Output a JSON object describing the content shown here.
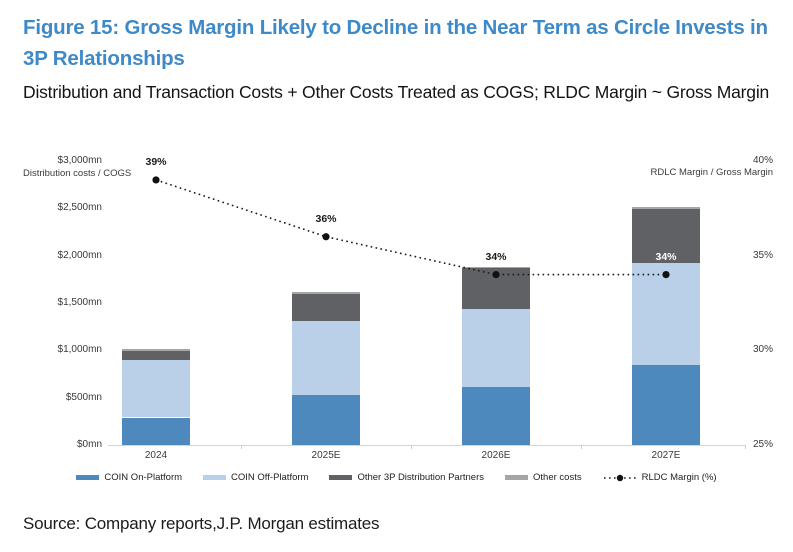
{
  "header": {
    "title": "Figure 15: Gross Margin Likely to Decline in the Near Term as Circle Invests in 3P Relationships",
    "subtitle": "Distribution and Transaction Costs + Other Costs Treated as COGS; RLDC Margin ~ Gross Margin"
  },
  "footer": {
    "source": "Source: Company reports,J.P. Morgan estimates"
  },
  "colors": {
    "title_blue": "#3e8ac8",
    "coin_on_platform": "#4e89be",
    "coin_off_platform": "#b9d0e8",
    "other_3p": "#5f6164",
    "other_costs": "#a6a6a6",
    "rldc_line": "#1a1a1a",
    "axis_line": "#d4d4d4"
  },
  "chart_data": {
    "type": "bar",
    "subtype": "stacked-bar-with-line",
    "categories": [
      "2024",
      "2025E",
      "2026E",
      "2027E"
    ],
    "series": [
      {
        "name": "COIN On-Platform",
        "color": "#4e89be",
        "values": [
          290,
          530,
          615,
          845
        ]
      },
      {
        "name": "COIN Off-Platform",
        "color": "#b9d0e8",
        "values": [
          610,
          785,
          820,
          1080
        ]
      },
      {
        "name": "Other 3P Distribution Partners",
        "color": "#5f6164",
        "values": [
          95,
          280,
          430,
          570
        ]
      },
      {
        "name": "Other costs",
        "color": "#a6a6a6",
        "values": [
          20,
          20,
          20,
          20
        ]
      }
    ],
    "line_series": {
      "name": "RLDC Margin (%)",
      "values": [
        39,
        36,
        34,
        34
      ],
      "labels": [
        "39%",
        "36%",
        "34%",
        "34%"
      ],
      "color": "#1a1a1a",
      "style": "dotted-with-markers",
      "axis": "right"
    },
    "left_axis": {
      "title": "Distribution costs / COGS",
      "ticks": [
        "$3,000mn",
        "$2,500mn",
        "$2,000mn",
        "$1,500mn",
        "$1,000mn",
        "$500mn",
        "$0mn"
      ],
      "tick_values": [
        3000,
        2500,
        2000,
        1500,
        1000,
        500,
        0
      ],
      "range": [
        0,
        3000
      ]
    },
    "right_axis": {
      "title": "RDLC Margin / Gross Margin",
      "ticks": [
        "40%",
        "35%",
        "30%",
        "25%"
      ],
      "tick_values": [
        40,
        35,
        30,
        25
      ],
      "range": [
        25,
        40
      ]
    },
    "grid": false,
    "legend_position": "bottom"
  }
}
